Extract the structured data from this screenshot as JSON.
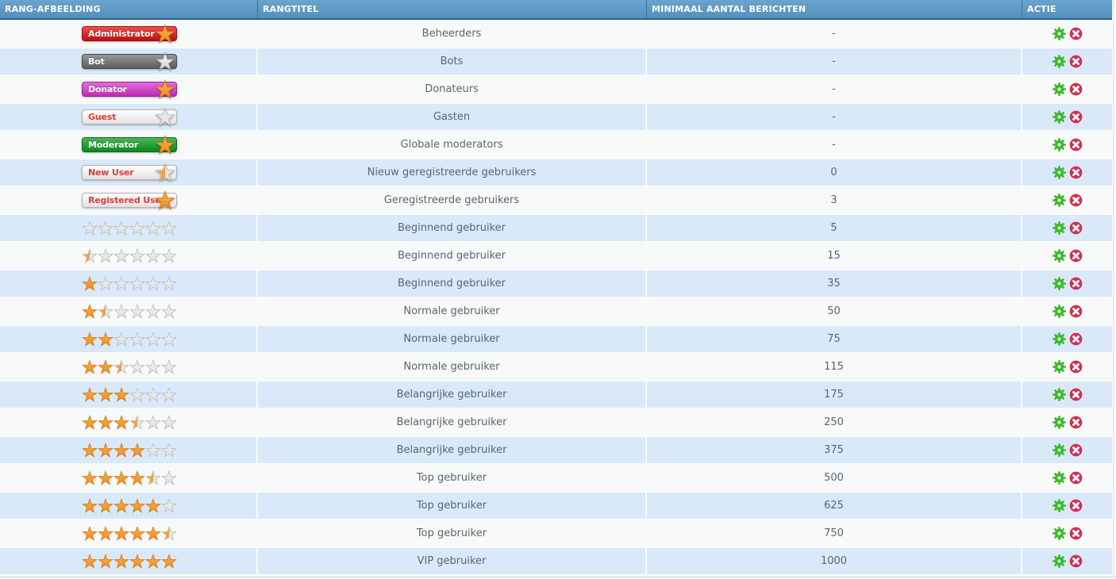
{
  "header": {
    "columns": [
      "RANG-AFBEELDING",
      "RANGTITEL",
      "MINIMAAL AANTAL BERICHTEN",
      "ACTIE"
    ]
  },
  "actions": {
    "edit_icon": "gear",
    "delete_icon": "circle-x"
  },
  "colors": {
    "header_top": "#6ba4cd",
    "header_bottom": "#5390bd",
    "header_border": "#2d6089",
    "row_even": "#f8f9f9",
    "row_odd": "#d9e9fa",
    "row_text": "#5b6470",
    "star_orange": "#f7a033",
    "star_empty": "#e9e9e9",
    "gear_green": "#3cba28",
    "delete_red": "#d23055",
    "badge_red": "#ba0f13",
    "badge_gray": "#5c5c5c",
    "badge_magenta": "#bd2cb3",
    "badge_green": "#0f861e",
    "badge_text_red": "#e23b3b"
  },
  "rows": [
    {
      "image": {
        "kind": "badge",
        "label": "Administrator",
        "style": "red",
        "star": "orange"
      },
      "title": "Beheerders",
      "min_posts": "-"
    },
    {
      "image": {
        "kind": "badge",
        "label": "Bot",
        "style": "gray",
        "star": "silver"
      },
      "title": "Bots",
      "min_posts": "-"
    },
    {
      "image": {
        "kind": "badge",
        "label": "Donator",
        "style": "magenta",
        "star": "orange"
      },
      "title": "Donateurs",
      "min_posts": "-"
    },
    {
      "image": {
        "kind": "badge",
        "label": "Guest",
        "style": "white",
        "star": "empty"
      },
      "title": "Gasten",
      "min_posts": "-"
    },
    {
      "image": {
        "kind": "badge",
        "label": "Moderator",
        "style": "green",
        "star": "orange"
      },
      "title": "Globale moderators",
      "min_posts": "-"
    },
    {
      "image": {
        "kind": "badge",
        "label": "New User",
        "style": "white",
        "star": "half"
      },
      "title": "Nieuw geregistreerde gebruikers",
      "min_posts": "0"
    },
    {
      "image": {
        "kind": "badge",
        "label": "Registered User",
        "style": "white",
        "star": "orange"
      },
      "title": "Geregistreerde gebruikers",
      "min_posts": "3"
    },
    {
      "image": {
        "kind": "stars",
        "filled": 0,
        "total": 6
      },
      "title": "Beginnend gebruiker",
      "min_posts": "5"
    },
    {
      "image": {
        "kind": "stars",
        "filled": 0.5,
        "total": 6
      },
      "title": "Beginnend gebruiker",
      "min_posts": "15"
    },
    {
      "image": {
        "kind": "stars",
        "filled": 1,
        "total": 6
      },
      "title": "Beginnend gebruiker",
      "min_posts": "35"
    },
    {
      "image": {
        "kind": "stars",
        "filled": 1.5,
        "total": 6
      },
      "title": "Normale gebruiker",
      "min_posts": "50"
    },
    {
      "image": {
        "kind": "stars",
        "filled": 2,
        "total": 6
      },
      "title": "Normale gebruiker",
      "min_posts": "75"
    },
    {
      "image": {
        "kind": "stars",
        "filled": 2.5,
        "total": 6
      },
      "title": "Normale gebruiker",
      "min_posts": "115"
    },
    {
      "image": {
        "kind": "stars",
        "filled": 3,
        "total": 6
      },
      "title": "Belangrijke gebruiker",
      "min_posts": "175"
    },
    {
      "image": {
        "kind": "stars",
        "filled": 3.5,
        "total": 6
      },
      "title": "Belangrijke gebruiker",
      "min_posts": "250"
    },
    {
      "image": {
        "kind": "stars",
        "filled": 4,
        "total": 6
      },
      "title": "Belangrijke gebruiker",
      "min_posts": "375"
    },
    {
      "image": {
        "kind": "stars",
        "filled": 4.5,
        "total": 6
      },
      "title": "Top gebruiker",
      "min_posts": "500"
    },
    {
      "image": {
        "kind": "stars",
        "filled": 5,
        "total": 6
      },
      "title": "Top gebruiker",
      "min_posts": "625"
    },
    {
      "image": {
        "kind": "stars",
        "filled": 5.5,
        "total": 6
      },
      "title": "Top gebruiker",
      "min_posts": "750"
    },
    {
      "image": {
        "kind": "stars",
        "filled": 6,
        "total": 6
      },
      "title": "VIP gebruiker",
      "min_posts": "1000"
    }
  ]
}
